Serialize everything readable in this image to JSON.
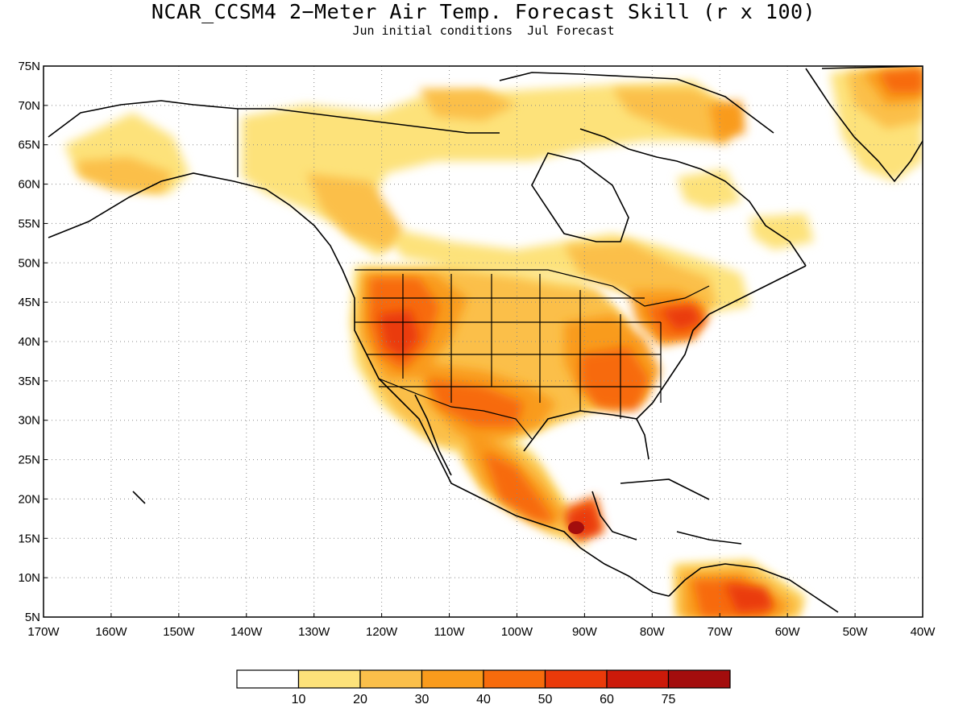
{
  "title": "NCAR_CCSM4 2−Meter Air Temp. Forecast Skill (r x 100)",
  "subtitle": "Jun initial conditions  Jul Forecast",
  "map": {
    "lon_range": [
      -170,
      -40
    ],
    "lat_range": [
      5,
      75
    ],
    "lat_ticks": [
      "5N",
      "10N",
      "15N",
      "20N",
      "25N",
      "30N",
      "35N",
      "40N",
      "45N",
      "50N",
      "55N",
      "60N",
      "65N",
      "70N",
      "75N"
    ],
    "lon_ticks": [
      "170W",
      "160W",
      "150W",
      "140W",
      "130W",
      "120W",
      "110W",
      "100W",
      "90W",
      "80W",
      "70W",
      "60W",
      "50W",
      "40W"
    ],
    "grid": "dotted"
  },
  "colorbar": {
    "levels": [
      "10",
      "20",
      "30",
      "40",
      "50",
      "60",
      "75"
    ],
    "colors": [
      "#ffffff",
      "#fde27a",
      "#fbbf4a",
      "#f99b1c",
      "#f76b0c",
      "#ea3a0a",
      "#cc1a0a",
      "#a30d0d"
    ]
  },
  "regions": [
    {
      "name": "Western US / Mexico",
      "level": "50"
    },
    {
      "name": "Central Plains",
      "level": "30"
    },
    {
      "name": "Southeast US",
      "level": "50"
    },
    {
      "name": "Northeast US",
      "level": "60"
    },
    {
      "name": "Central America",
      "level": "75"
    },
    {
      "name": "Northern South America",
      "level": "60"
    },
    {
      "name": "Greenland east coast",
      "level": "50"
    },
    {
      "name": "Alaska / Yukon",
      "level": "20"
    }
  ]
}
